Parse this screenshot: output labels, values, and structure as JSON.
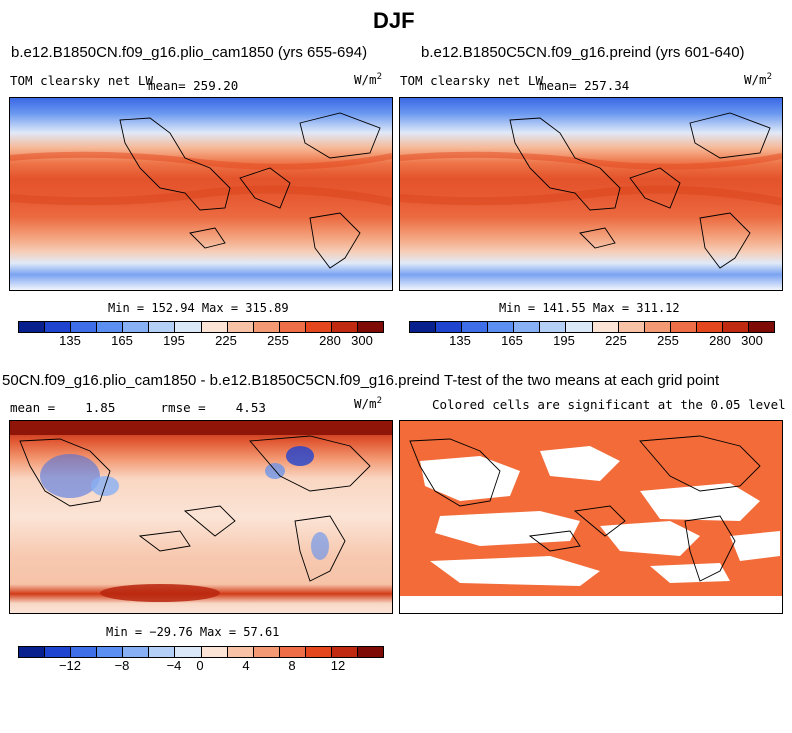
{
  "figure": {
    "title": "DJF"
  },
  "panels": [
    {
      "title": "b.e12.B1850CN.f09_g16.plio_cam1850 (yrs 655-694)",
      "variable": "TOM clearsky net LW",
      "mean_label": "mean= 259.20",
      "units": "W/m",
      "units_sup": "2",
      "minmax": "Min = 152.94 Max = 315.89"
    },
    {
      "title": "b.e12.B1850C5CN.f09_g16.preind (yrs 601-640)",
      "variable": "TOM clearsky net LW",
      "mean_label": "mean= 257.34",
      "units": "W/m",
      "units_sup": "2",
      "minmax": "Min = 141.55 Max = 311.12"
    },
    {
      "title": "50CN.f09_g16.plio_cam1850 - b.e12.B1850C5CN.f09_g16.preind",
      "stats": "mean =    1.85      rmse =    4.53",
      "units": "W/m",
      "units_sup": "2",
      "minmax": "Min = −29.76 Max =  57.61"
    },
    {
      "title": "T-test of the two means at each grid point",
      "subtitle": "Colored cells are significant at the 0.05 level"
    }
  ],
  "colorbars": {
    "absolute": {
      "ticks": [
        "135",
        "165",
        "195",
        "225",
        "255",
        "280",
        "300"
      ],
      "colors": [
        "#08208e",
        "#1f44cf",
        "#3e6ee8",
        "#5b8ff2",
        "#88b0f5",
        "#b5d0f7",
        "#dbe8f8",
        "#fbe4d6",
        "#f7c2a6",
        "#f39a74",
        "#ee6e48",
        "#e4471e",
        "#c02a10",
        "#7e0b06"
      ]
    },
    "difference": {
      "ticks": [
        "−12",
        "−8",
        "−4",
        "0",
        "4",
        "8",
        "12"
      ],
      "colors": [
        "#08208e",
        "#1f44cf",
        "#3e6ee8",
        "#5b8ff2",
        "#88b0f5",
        "#b5d0f7",
        "#dbe8f8",
        "#fbe4d6",
        "#f7c2a6",
        "#f39a74",
        "#ee6e48",
        "#e4471e",
        "#c02a10",
        "#7e0b06"
      ]
    }
  },
  "colors": {
    "significant": "#f26b38",
    "tropical_max": "#e8502a",
    "polar_min": "#3e6ee8"
  }
}
